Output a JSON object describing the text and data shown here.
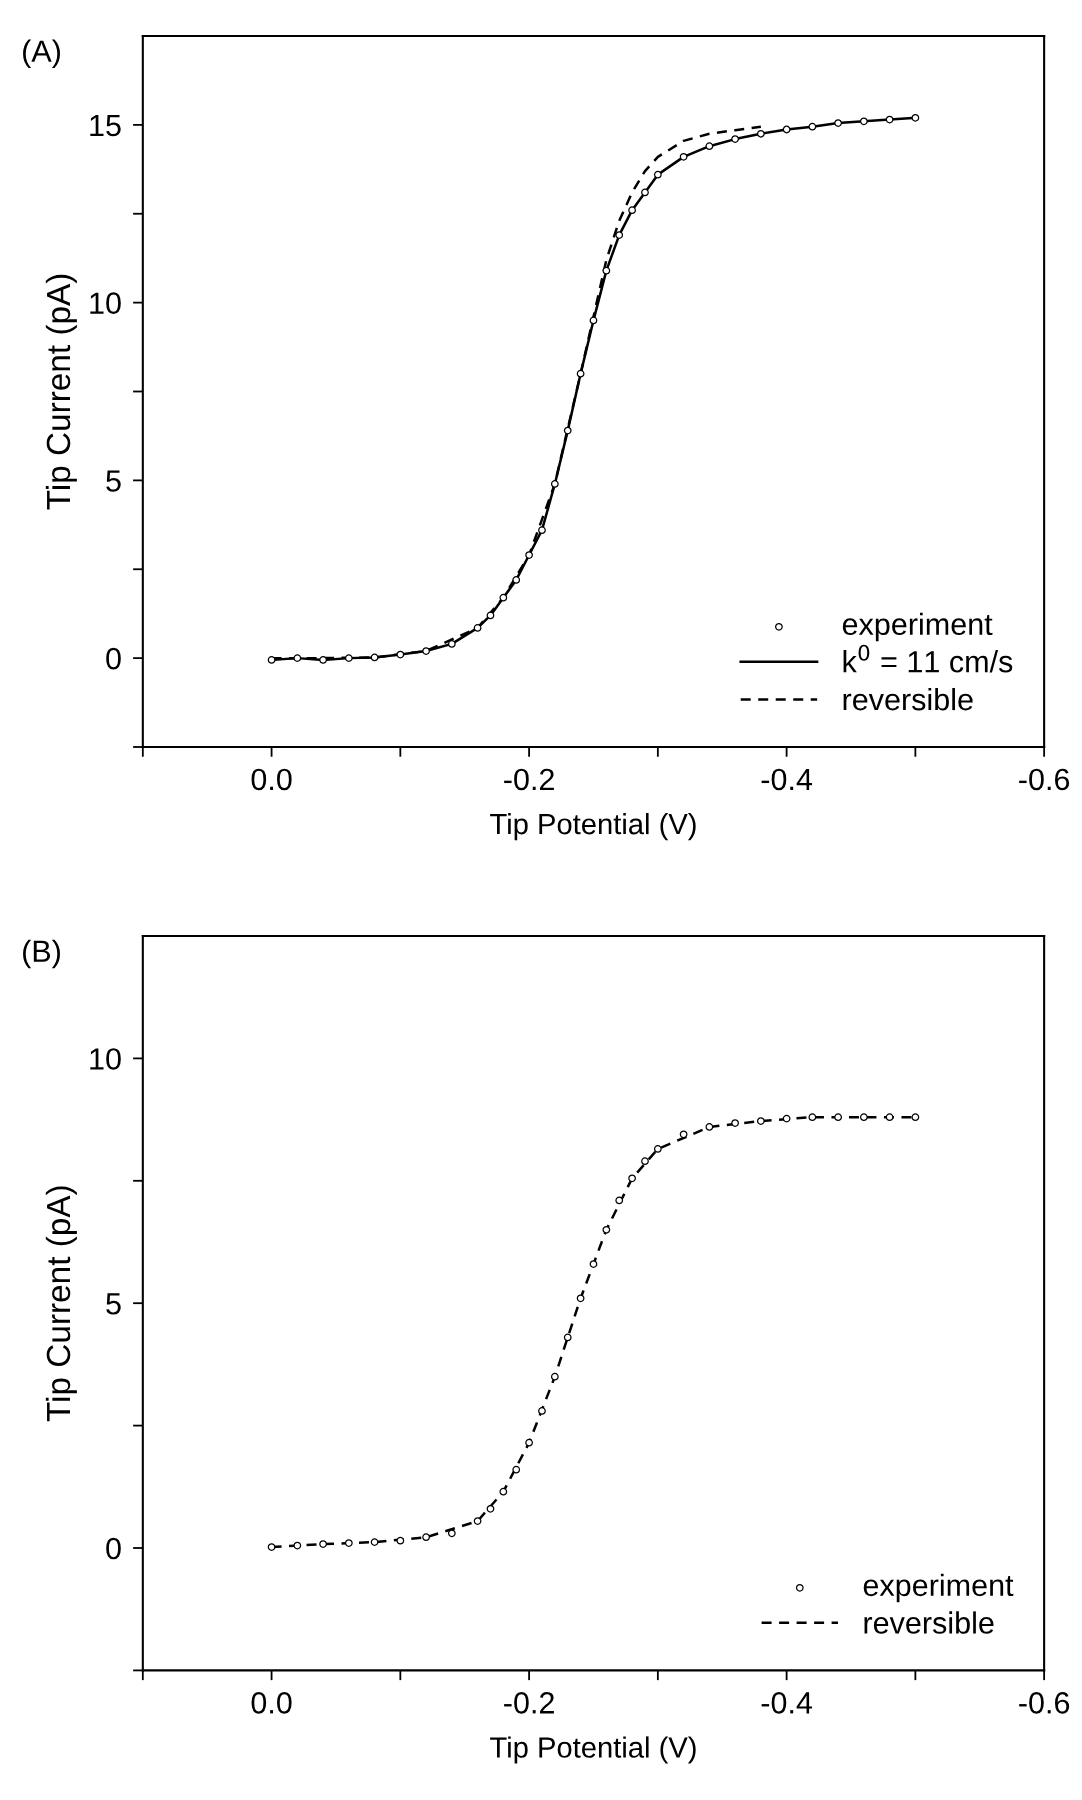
{
  "chart_data": [
    {
      "type": "scatter",
      "title": "(A)",
      "xlabel": "Tip Potential (V)",
      "ylabel": "Tip Current (pA)",
      "xlim": [
        0.1,
        -0.6
      ],
      "ylim": [
        -2.5,
        17.5
      ],
      "xticks": [
        {
          "value": 0.1,
          "label": null
        },
        "0.0",
        -0.2,
        -0.4,
        -0.6,
        {
          "value": -0.1,
          "label": null
        },
        {
          "value": -0.3,
          "label": null
        },
        {
          "value": -0.5,
          "label": null
        }
      ],
      "yticks": [
        0,
        5,
        10,
        15,
        {
          "value": -2.5,
          "label": null
        },
        {
          "value": 2.5,
          "label": null
        },
        {
          "value": 7.5,
          "label": null
        },
        {
          "value": 12.5,
          "label": null
        }
      ],
      "grid": false,
      "legend": "bottom right",
      "series": [
        {
          "name": "experiment",
          "marker": "circle",
          "color": "#000000",
          "x": [
            0,
            -0.02,
            -0.04,
            -0.06,
            -0.08,
            -0.1,
            -0.12,
            -0.14,
            -0.16,
            -0.17,
            -0.18,
            -0.19,
            -0.2,
            -0.21,
            -0.22,
            -0.23,
            -0.24,
            -0.25,
            -0.26,
            -0.27,
            -0.28,
            -0.29,
            -0.3,
            -0.32,
            -0.34,
            -0.36,
            -0.38,
            -0.4,
            -0.42,
            -0.44,
            -0.46,
            -0.48,
            -0.5
          ],
          "values": [
            -0.05,
            0.0,
            -0.05,
            0.0,
            0.02,
            0.1,
            0.2,
            0.4,
            0.85,
            1.2,
            1.7,
            2.2,
            2.9,
            3.6,
            4.9,
            6.4,
            8.0,
            9.5,
            10.9,
            11.9,
            12.6,
            13.1,
            13.6,
            14.1,
            14.4,
            14.6,
            14.75,
            14.87,
            14.95,
            15.05,
            15.1,
            15.15,
            15.2
          ]
        },
        {
          "name": "k$^{0}$ = 11 cm/s",
          "type": "line",
          "line_style": "solid",
          "color": "#000000",
          "x": [
            0,
            -0.02,
            -0.04,
            -0.06,
            -0.08,
            -0.1,
            -0.12,
            -0.14,
            -0.16,
            -0.17,
            -0.18,
            -0.19,
            -0.2,
            -0.21,
            -0.22,
            -0.23,
            -0.24,
            -0.25,
            -0.26,
            -0.27,
            -0.28,
            -0.29,
            -0.3,
            -0.32,
            -0.34,
            -0.36,
            -0.38,
            -0.4,
            -0.42,
            -0.44,
            -0.46,
            -0.48,
            -0.5
          ],
          "values": [
            -0.05,
            0.0,
            -0.05,
            0.0,
            0.02,
            0.1,
            0.2,
            0.4,
            0.85,
            1.2,
            1.7,
            2.2,
            2.9,
            3.6,
            4.9,
            6.4,
            8.0,
            9.5,
            10.9,
            11.9,
            12.6,
            13.1,
            13.6,
            14.1,
            14.4,
            14.6,
            14.75,
            14.87,
            14.95,
            15.05,
            15.1,
            15.15,
            15.2
          ]
        },
        {
          "name": "reversible",
          "type": "line",
          "line_style": "dashed",
          "color": "#000000",
          "x": [
            0,
            -0.04,
            -0.08,
            -0.12,
            -0.16,
            -0.18,
            -0.2,
            -0.22,
            -0.24,
            -0.25,
            -0.26,
            -0.27,
            -0.28,
            -0.29,
            -0.3,
            -0.32,
            -0.34,
            -0.36,
            -0.38
          ],
          "values": [
            0.0,
            0.0,
            0.02,
            0.2,
            0.85,
            1.7,
            2.9,
            4.9,
            8.0,
            9.6,
            11.2,
            12.3,
            13.1,
            13.7,
            14.1,
            14.55,
            14.75,
            14.85,
            14.95
          ]
        }
      ]
    },
    {
      "type": "scatter",
      "title": "(B)",
      "xlabel": "Tip Potential (V)",
      "ylabel": "Tip Current (pA)",
      "xlim": [
        0.1,
        -0.6
      ],
      "ylim": [
        -2.5,
        12.5
      ],
      "xticks": [
        {
          "value": 0.1,
          "label": null
        },
        "0.0",
        -0.2,
        -0.4,
        -0.6,
        {
          "value": -0.1,
          "label": null
        },
        {
          "value": -0.3,
          "label": null
        },
        {
          "value": -0.5,
          "label": null
        }
      ],
      "yticks": [
        0,
        5,
        10,
        {
          "value": -2.5,
          "label": null
        },
        {
          "value": 2.5,
          "label": null
        },
        {
          "value": 7.5,
          "label": null
        }
      ],
      "grid": false,
      "legend": "bottom right",
      "series": [
        {
          "name": "experiment",
          "marker": "circle",
          "color": "#000000",
          "x": [
            0,
            -0.02,
            -0.04,
            -0.06,
            -0.08,
            -0.1,
            -0.12,
            -0.14,
            -0.16,
            -0.17,
            -0.18,
            -0.19,
            -0.2,
            -0.21,
            -0.22,
            -0.23,
            -0.24,
            -0.25,
            -0.26,
            -0.27,
            -0.28,
            -0.29,
            -0.3,
            -0.32,
            -0.34,
            -0.36,
            -0.38,
            -0.4,
            -0.42,
            -0.44,
            -0.46,
            -0.48,
            -0.5
          ],
          "values": [
            0.02,
            0.05,
            0.08,
            0.1,
            0.12,
            0.15,
            0.22,
            0.3,
            0.55,
            0.8,
            1.15,
            1.6,
            2.15,
            2.8,
            3.5,
            4.3,
            5.1,
            5.8,
            6.5,
            7.1,
            7.55,
            7.9,
            8.15,
            8.45,
            8.6,
            8.68,
            8.72,
            8.77,
            8.8,
            8.8,
            8.8,
            8.8,
            8.8
          ]
        },
        {
          "name": "reversible",
          "type": "line",
          "line_style": "dashed",
          "color": "#000000",
          "x": [
            0,
            -0.04,
            -0.08,
            -0.12,
            -0.16,
            -0.18,
            -0.2,
            -0.22,
            -0.24,
            -0.26,
            -0.28,
            -0.3,
            -0.34,
            -0.38,
            -0.42,
            -0.46,
            -0.5
          ],
          "values": [
            0.02,
            0.08,
            0.12,
            0.22,
            0.55,
            1.15,
            2.15,
            3.5,
            5.1,
            6.5,
            7.55,
            8.15,
            8.6,
            8.72,
            8.8,
            8.8,
            8.8
          ]
        }
      ]
    }
  ]
}
